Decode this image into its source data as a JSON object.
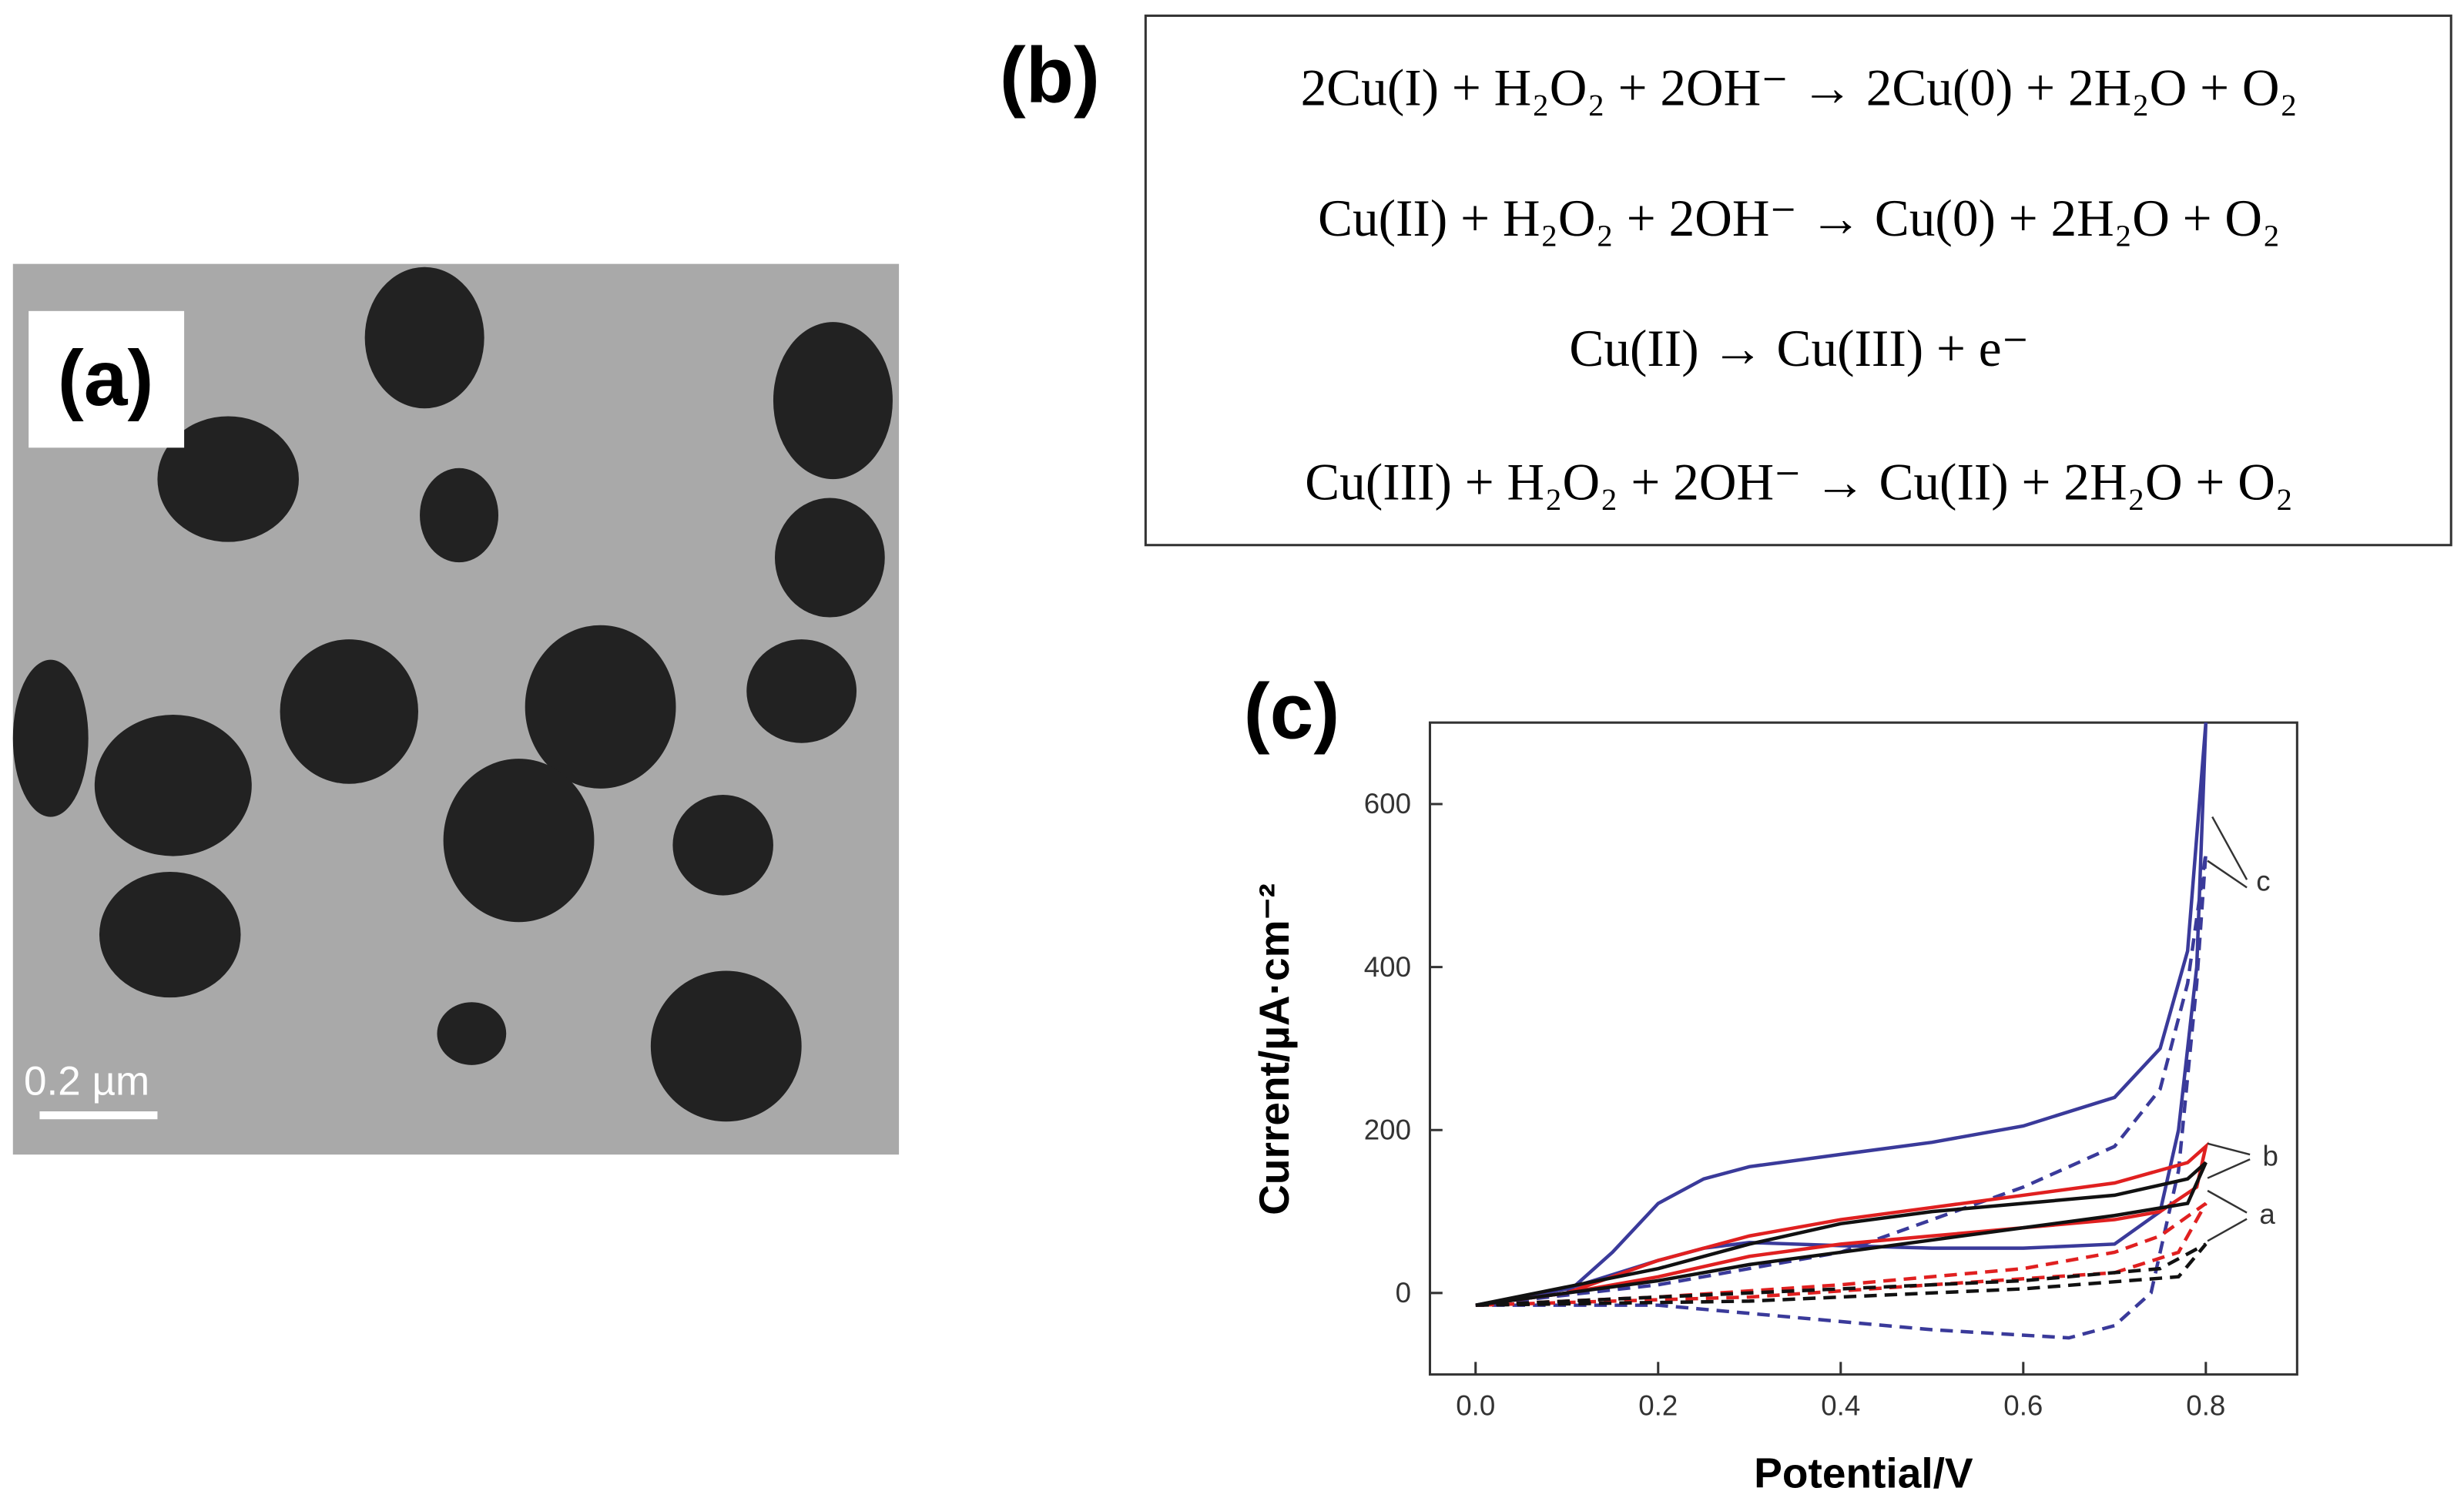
{
  "panels": {
    "a": {
      "label": "(a)",
      "scale_bar": "0.2 µm"
    },
    "b": {
      "label": "(b)",
      "equations": [
        "2Cu(I) + H₂O₂ + 2OH⁻ → 2Cu(0) + 2H₂O + O₂",
        "Cu(II) + H₂O₂ + 2OH⁻ → Cu(0) + 2H₂O + O₂",
        "Cu(II) → Cu(III) + e⁻",
        "Cu(III) + H₂O₂ + 2OH⁻ → Cu(II) + 2H₂O + O₂"
      ]
    },
    "c": {
      "label": "(c)"
    }
  },
  "chart_data": {
    "type": "line",
    "x_label": "Potential/V",
    "y_label": "Current/µA·cm⁻²",
    "xlim": [
      -0.05,
      0.9
    ],
    "ylim": [
      -100,
      700
    ],
    "xticks": [
      {
        "value": 0,
        "label": "0.0"
      },
      0.2,
      0.4,
      0.6,
      0.8
    ],
    "yticks": [
      0,
      200,
      400,
      600
    ],
    "annotations": [
      "c",
      "b",
      "a"
    ],
    "series": [
      {
        "color": "#3a3a9a",
        "dashed": false,
        "x": [
          0,
          0.1,
          0.15,
          0.2,
          0.25,
          0.3,
          0.4,
          0.5,
          0.6,
          0.7,
          0.75,
          0.78,
          0.8,
          0.79,
          0.77,
          0.75,
          0.7,
          0.6,
          0.5,
          0.4,
          0.3,
          0.25,
          0.2,
          0.1,
          0
        ],
        "values": [
          -15,
          0,
          50,
          110,
          140,
          155,
          170,
          185,
          205,
          240,
          300,
          420,
          700,
          400,
          200,
          100,
          60,
          55,
          55,
          58,
          62,
          55,
          40,
          5,
          -15
        ]
      },
      {
        "color": "#3a3a9a",
        "dashed": true,
        "x": [
          0,
          0.2,
          0.4,
          0.6,
          0.7,
          0.75,
          0.78,
          0.8,
          0.79,
          0.77,
          0.74,
          0.7,
          0.65,
          0.5,
          0.3,
          0.2,
          0
        ],
        "values": [
          -15,
          10,
          50,
          130,
          180,
          250,
          380,
          540,
          380,
          150,
          0,
          -40,
          -55,
          -45,
          -25,
          -15,
          -15
        ]
      },
      {
        "color": "#e02020",
        "dashed": false,
        "x": [
          0,
          0.1,
          0.2,
          0.3,
          0.4,
          0.5,
          0.6,
          0.7,
          0.78,
          0.8,
          0.79,
          0.75,
          0.7,
          0.6,
          0.5,
          0.4,
          0.3,
          0.2,
          0.1,
          0
        ],
        "values": [
          -15,
          0,
          40,
          70,
          90,
          105,
          120,
          135,
          160,
          180,
          130,
          100,
          90,
          80,
          70,
          60,
          45,
          20,
          0,
          -15
        ]
      },
      {
        "color": "#e02020",
        "dashed": true,
        "x": [
          0,
          0.2,
          0.4,
          0.6,
          0.7,
          0.75,
          0.8,
          0.77,
          0.7,
          0.5,
          0.3,
          0
        ],
        "values": [
          -15,
          -5,
          10,
          30,
          50,
          70,
          110,
          50,
          25,
          10,
          -5,
          -15
        ]
      },
      {
        "color": "#111111",
        "dashed": false,
        "x": [
          0,
          0.2,
          0.3,
          0.4,
          0.5,
          0.6,
          0.7,
          0.78,
          0.8,
          0.78,
          0.7,
          0.6,
          0.5,
          0.4,
          0.3,
          0.2,
          0
        ],
        "values": [
          -15,
          30,
          60,
          85,
          100,
          110,
          120,
          140,
          160,
          110,
          95,
          80,
          65,
          50,
          35,
          15,
          -15
        ]
      },
      {
        "color": "#111111",
        "dashed": true,
        "x": [
          0,
          0.3,
          0.6,
          0.75,
          0.8,
          0.77,
          0.6,
          0.3,
          0
        ],
        "values": [
          -15,
          0,
          15,
          30,
          60,
          20,
          5,
          -10,
          -15
        ]
      }
    ]
  }
}
